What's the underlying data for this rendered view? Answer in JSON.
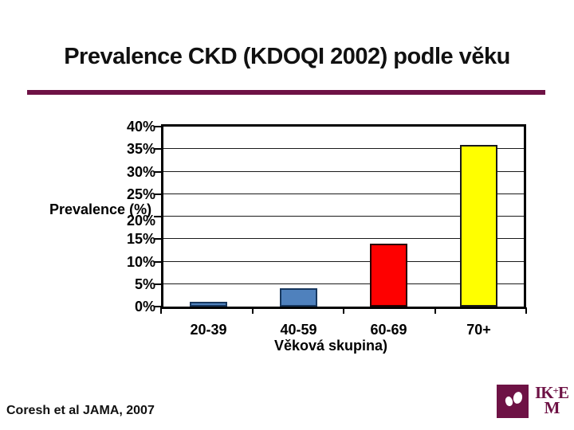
{
  "slide": {
    "title": "Prevalence CKD (KDOQI 2002) podle věku",
    "citation": "Coresh et al JAMA, 2007"
  },
  "chart_data": {
    "type": "bar",
    "title": "",
    "categories": [
      "20-39",
      "40-59",
      "60-69",
      "70+"
    ],
    "values": [
      1,
      4,
      14,
      36
    ],
    "unit": "%",
    "xlabel": "Věková skupina)",
    "ylabel": "Prevalence (%)",
    "ylim": [
      0,
      40
    ],
    "ytick_step": 5,
    "ytick_labels": [
      "0%",
      "5%",
      "10%",
      "15%",
      "20%",
      "25%",
      "30%",
      "35%",
      "40%"
    ],
    "grid": true,
    "legend": false,
    "bar_colors": [
      "#4f81bd",
      "#4f81bd",
      "#fe0000",
      "#ffff00"
    ],
    "bar_border_colors": [
      "#17375e",
      "#17375e",
      "#2a0000",
      "#1a1a1a"
    ]
  },
  "logo": {
    "line1_left": "IK",
    "plus_sign": "+",
    "line1_right": "E",
    "line2": "M"
  },
  "colors": {
    "title_text": "#111111",
    "divider_maroon": "#6e1245",
    "logo_maroon": "#6e1245",
    "axis_text": "#000000",
    "gridline": "#1a1a1a"
  }
}
